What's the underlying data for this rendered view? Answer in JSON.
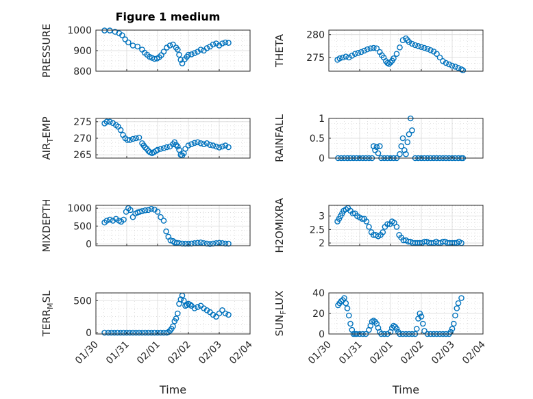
{
  "figure": {
    "title": "Figure 1 medium",
    "marker_color": "#0072BD"
  },
  "chart_data": [
    {
      "type": "scatter",
      "title": "Figure 1 medium",
      "ylabel": "PRESSURE",
      "xlabel": "",
      "ylim": [
        800,
        1000
      ],
      "yticks": [
        800,
        900,
        1000
      ],
      "ytick_labels": [
        "800",
        "900",
        "1000"
      ],
      "xlim": [
        0,
        5
      ],
      "xticks": [
        0,
        1,
        2,
        3,
        4,
        5
      ],
      "x": [
        0.28,
        0.45,
        0.62,
        0.75,
        0.85,
        0.95,
        1.05,
        1.2,
        1.35,
        1.5,
        1.58,
        1.66,
        1.74,
        1.82,
        1.9,
        1.98,
        2.05,
        2.12,
        2.2,
        2.3,
        2.4,
        2.5,
        2.6,
        2.65,
        2.7,
        2.75,
        2.8,
        2.88,
        2.95,
        3.0,
        3.1,
        3.2,
        3.3,
        3.4,
        3.5,
        3.6,
        3.7,
        3.8,
        3.9,
        4.0,
        4.1,
        4.2,
        4.3
      ],
      "y": [
        998,
        998,
        992,
        985,
        975,
        955,
        940,
        925,
        920,
        905,
        890,
        880,
        870,
        865,
        860,
        862,
        868,
        878,
        895,
        915,
        925,
        930,
        915,
        905,
        880,
        855,
        838,
        858,
        870,
        880,
        882,
        888,
        895,
        905,
        900,
        912,
        920,
        930,
        935,
        925,
        935,
        940,
        938
      ]
    },
    {
      "type": "scatter",
      "ylabel": "THETA",
      "xlabel": "",
      "ylim": [
        272,
        281
      ],
      "yticks": [
        275,
        280
      ],
      "ytick_labels": [
        "275",
        "280"
      ],
      "xlim": [
        0,
        5
      ],
      "xticks": [
        0,
        1,
        2,
        3,
        4,
        5
      ],
      "x": [
        0.28,
        0.35,
        0.45,
        0.55,
        0.65,
        0.75,
        0.85,
        0.95,
        1.05,
        1.15,
        1.25,
        1.35,
        1.45,
        1.55,
        1.65,
        1.72,
        1.78,
        1.85,
        1.9,
        1.95,
        2.0,
        2.05,
        2.1,
        2.2,
        2.3,
        2.4,
        2.5,
        2.55,
        2.6,
        2.7,
        2.8,
        2.9,
        3.0,
        3.1,
        3.2,
        3.3,
        3.4,
        3.5,
        3.6,
        3.7,
        3.8,
        3.9,
        4.0,
        4.1,
        4.2,
        4.3,
        4.35
      ],
      "y": [
        274.5,
        274.8,
        275.0,
        275.2,
        275.0,
        275.4,
        275.8,
        276.0,
        276.2,
        276.5,
        276.8,
        277.0,
        277.1,
        277.0,
        276.2,
        275.5,
        275.0,
        274.2,
        273.8,
        273.6,
        273.9,
        274.3,
        274.8,
        275.8,
        277.2,
        278.8,
        279.2,
        278.8,
        278.4,
        278.0,
        277.7,
        277.5,
        277.3,
        277.1,
        276.9,
        276.6,
        276.3,
        275.8,
        275.0,
        274.2,
        273.8,
        273.5,
        273.2,
        273.0,
        272.7,
        272.4,
        272.2
      ]
    },
    {
      "type": "scatter",
      "ylabel": "AIR_TEMP",
      "xlabel": "",
      "ylim": [
        264,
        276
      ],
      "yticks": [
        265,
        270,
        275
      ],
      "ytick_labels": [
        "265",
        "270",
        "275"
      ],
      "xlim": [
        0,
        5
      ],
      "xticks": [
        0,
        1,
        2,
        3,
        4,
        5
      ],
      "x": [
        0.28,
        0.35,
        0.45,
        0.55,
        0.65,
        0.72,
        0.8,
        0.88,
        0.95,
        1.02,
        1.1,
        1.2,
        1.3,
        1.4,
        1.5,
        1.55,
        1.6,
        1.65,
        1.7,
        1.75,
        1.82,
        1.88,
        1.95,
        2.0,
        2.1,
        2.2,
        2.3,
        2.4,
        2.5,
        2.55,
        2.6,
        2.65,
        2.7,
        2.75,
        2.8,
        2.85,
        2.9,
        3.0,
        3.1,
        3.2,
        3.3,
        3.4,
        3.5,
        3.6,
        3.7,
        3.8,
        3.9,
        4.0,
        4.1,
        4.2,
        4.3
      ],
      "y": [
        274.5,
        275.0,
        275.0,
        274.6,
        274.0,
        273.5,
        272.5,
        271.0,
        270.0,
        269.5,
        269.5,
        269.8,
        270.0,
        270.2,
        268.5,
        267.8,
        267.2,
        266.8,
        266.2,
        265.8,
        265.5,
        265.8,
        266.2,
        266.5,
        266.8,
        267.0,
        267.3,
        267.5,
        268.2,
        268.8,
        268.0,
        267.5,
        266.5,
        265.0,
        264.8,
        265.5,
        266.8,
        267.8,
        268.2,
        268.6,
        268.8,
        268.5,
        268.2,
        268.5,
        268.0,
        267.8,
        267.5,
        267.2,
        267.5,
        267.8,
        267.3
      ]
    },
    {
      "type": "scatter",
      "ylabel": "RAINFALL",
      "xlabel": "",
      "ylim": [
        0,
        1
      ],
      "yticks": [
        0,
        0.5,
        1
      ],
      "ytick_labels": [
        "0",
        "0.5",
        "1"
      ],
      "xlim": [
        0,
        5
      ],
      "xticks": [
        0,
        1,
        2,
        3,
        4,
        5
      ],
      "x": [
        0.3,
        0.4,
        0.5,
        0.6,
        0.7,
        0.8,
        0.9,
        1.0,
        1.1,
        1.2,
        1.3,
        1.4,
        1.45,
        1.5,
        1.55,
        1.6,
        1.65,
        1.7,
        1.8,
        1.9,
        2.0,
        2.1,
        2.2,
        2.3,
        2.35,
        2.4,
        2.45,
        2.5,
        2.55,
        2.6,
        2.65,
        2.7,
        2.8,
        2.9,
        3.0,
        3.1,
        3.2,
        3.3,
        3.4,
        3.5,
        3.6,
        3.7,
        3.8,
        3.9,
        4.0,
        4.1,
        4.2,
        4.3,
        4.35
      ],
      "y": [
        0,
        0,
        0,
        0,
        0,
        0,
        0,
        0,
        0,
        0,
        0,
        0,
        0.3,
        0.2,
        0.28,
        0.12,
        0.3,
        0,
        0,
        0,
        0,
        0,
        0,
        0.1,
        0.3,
        0.5,
        0.2,
        0.1,
        0.4,
        0.6,
        1.0,
        0.7,
        0,
        0,
        0,
        0,
        0,
        0,
        0,
        0,
        0,
        0,
        0,
        0,
        0,
        0,
        0,
        0,
        0
      ]
    },
    {
      "type": "scatter",
      "ylabel": "MIXDEPTH",
      "xlabel": "",
      "ylim": [
        -50,
        1080
      ],
      "yticks": [
        0,
        500,
        1000
      ],
      "ytick_labels": [
        "0",
        "500",
        "1000"
      ],
      "xlim": [
        0,
        5
      ],
      "xticks": [
        0,
        1,
        2,
        3,
        4,
        5
      ],
      "x": [
        0.28,
        0.35,
        0.45,
        0.55,
        0.65,
        0.75,
        0.82,
        0.9,
        0.98,
        1.05,
        1.12,
        1.2,
        1.28,
        1.35,
        1.42,
        1.5,
        1.6,
        1.7,
        1.8,
        1.9,
        2.0,
        2.1,
        2.2,
        2.28,
        2.35,
        2.42,
        2.5,
        2.55,
        2.62,
        2.7,
        2.8,
        2.9,
        3.0,
        3.1,
        3.2,
        3.3,
        3.4,
        3.5,
        3.6,
        3.7,
        3.8,
        3.9,
        4.0,
        4.1,
        4.2,
        4.3
      ],
      "y": [
        600,
        650,
        680,
        650,
        700,
        650,
        620,
        680,
        900,
        1000,
        950,
        750,
        850,
        880,
        900,
        920,
        940,
        950,
        980,
        960,
        900,
        750,
        650,
        350,
        200,
        100,
        80,
        40,
        30,
        20,
        10,
        5,
        5,
        10,
        20,
        30,
        40,
        20,
        10,
        0,
        10,
        20,
        30,
        20,
        10,
        5
      ]
    },
    {
      "type": "scatter",
      "ylabel": "H2OMIXRA",
      "xlabel": "",
      "ylim": [
        1.9,
        3.4
      ],
      "yticks": [
        2,
        2.5,
        3
      ],
      "ytick_labels": [
        "2",
        "2.5",
        "3"
      ],
      "xlim": [
        0,
        5
      ],
      "xticks": [
        0,
        1,
        2,
        3,
        4,
        5
      ],
      "x": [
        0.28,
        0.33,
        0.38,
        0.43,
        0.48,
        0.55,
        0.62,
        0.7,
        0.78,
        0.85,
        0.92,
        1.0,
        1.08,
        1.15,
        1.22,
        1.3,
        1.38,
        1.45,
        1.52,
        1.6,
        1.68,
        1.75,
        1.82,
        1.9,
        1.98,
        2.05,
        2.12,
        2.2,
        2.28,
        2.35,
        2.42,
        2.5,
        2.58,
        2.65,
        2.72,
        2.8,
        2.88,
        2.95,
        3.02,
        3.1,
        3.18,
        3.25,
        3.32,
        3.4,
        3.48,
        3.55,
        3.62,
        3.7,
        3.78,
        3.85,
        3.92,
        4.0,
        4.08,
        4.15,
        4.22,
        4.3
      ],
      "y": [
        2.8,
        2.9,
        3.0,
        3.1,
        3.2,
        3.25,
        3.3,
        3.2,
        3.1,
        3.1,
        3.0,
        2.95,
        2.9,
        2.9,
        2.8,
        2.6,
        2.4,
        2.3,
        2.3,
        2.25,
        2.3,
        2.4,
        2.6,
        2.7,
        2.7,
        2.8,
        2.75,
        2.6,
        2.3,
        2.2,
        2.1,
        2.1,
        2.05,
        2.05,
        2.0,
        2.0,
        2.0,
        2.0,
        2.0,
        2.05,
        2.05,
        2.0,
        2.0,
        2.0,
        2.05,
        2.0,
        2.0,
        2.05,
        2.05,
        2.0,
        2.0,
        2.0,
        2.0,
        2.0,
        2.05,
        2.0
      ]
    },
    {
      "type": "scatter",
      "ylabel": "TERR_MSL",
      "xlabel": "Time",
      "ylim": [
        -20,
        620
      ],
      "yticks": [
        0,
        500
      ],
      "ytick_labels": [
        "0",
        "500"
      ],
      "xlim": [
        0,
        5
      ],
      "xticks": [
        0,
        1,
        2,
        3,
        4,
        5
      ],
      "xtick_labels": [
        "01/30",
        "01/31",
        "02/01",
        "02/02",
        "02/03",
        "02/04"
      ],
      "x": [
        0.28,
        0.4,
        0.5,
        0.6,
        0.7,
        0.8,
        0.9,
        1.0,
        1.1,
        1.2,
        1.3,
        1.4,
        1.5,
        1.6,
        1.7,
        1.8,
        1.9,
        2.0,
        2.1,
        2.2,
        2.3,
        2.35,
        2.4,
        2.45,
        2.5,
        2.55,
        2.6,
        2.65,
        2.7,
        2.75,
        2.8,
        2.85,
        2.9,
        2.95,
        3.0,
        3.05,
        3.1,
        3.2,
        3.3,
        3.4,
        3.5,
        3.6,
        3.7,
        3.8,
        3.9,
        4.0,
        4.1,
        4.2,
        4.3
      ],
      "y": [
        0,
        0,
        0,
        0,
        0,
        0,
        0,
        0,
        0,
        0,
        0,
        0,
        0,
        0,
        0,
        0,
        0,
        0,
        0,
        0,
        0,
        10,
        30,
        60,
        100,
        180,
        220,
        300,
        450,
        520,
        580,
        500,
        420,
        430,
        450,
        440,
        420,
        380,
        400,
        420,
        380,
        350,
        320,
        280,
        250,
        300,
        350,
        300,
        280
      ]
    },
    {
      "type": "scatter",
      "ylabel": "SUN_FLUX",
      "xlabel": "Time",
      "ylim": [
        0,
        40
      ],
      "yticks": [
        0,
        20,
        40
      ],
      "ytick_labels": [
        "0",
        "20",
        "40"
      ],
      "xlim": [
        0,
        5
      ],
      "xticks": [
        0,
        1,
        2,
        3,
        4,
        5
      ],
      "xtick_labels": [
        "01/30",
        "01/31",
        "02/01",
        "02/02",
        "02/03",
        "02/04"
      ],
      "x": [
        0.3,
        0.35,
        0.4,
        0.45,
        0.5,
        0.55,
        0.6,
        0.65,
        0.7,
        0.75,
        0.8,
        0.85,
        0.9,
        1.0,
        1.1,
        1.2,
        1.3,
        1.35,
        1.4,
        1.45,
        1.5,
        1.55,
        1.6,
        1.65,
        1.7,
        1.8,
        1.9,
        2.0,
        2.05,
        2.1,
        2.15,
        2.2,
        2.25,
        2.3,
        2.4,
        2.5,
        2.6,
        2.7,
        2.8,
        2.85,
        2.9,
        2.95,
        3.0,
        3.05,
        3.1,
        3.2,
        3.3,
        3.4,
        3.5,
        3.6,
        3.7,
        3.8,
        3.9,
        3.95,
        4.0,
        4.05,
        4.1,
        4.15,
        4.2,
        4.3
      ],
      "y": [
        28,
        30,
        32,
        33,
        35,
        30,
        25,
        18,
        10,
        4,
        0,
        0,
        0,
        0,
        0,
        0,
        4,
        8,
        12,
        13,
        12,
        10,
        6,
        2,
        0,
        0,
        0,
        2,
        6,
        8,
        7,
        5,
        2,
        0,
        0,
        0,
        0,
        0,
        0,
        5,
        15,
        20,
        17,
        10,
        3,
        0,
        0,
        0,
        0,
        0,
        0,
        0,
        0,
        2,
        5,
        10,
        18,
        25,
        30,
        35
      ]
    }
  ]
}
